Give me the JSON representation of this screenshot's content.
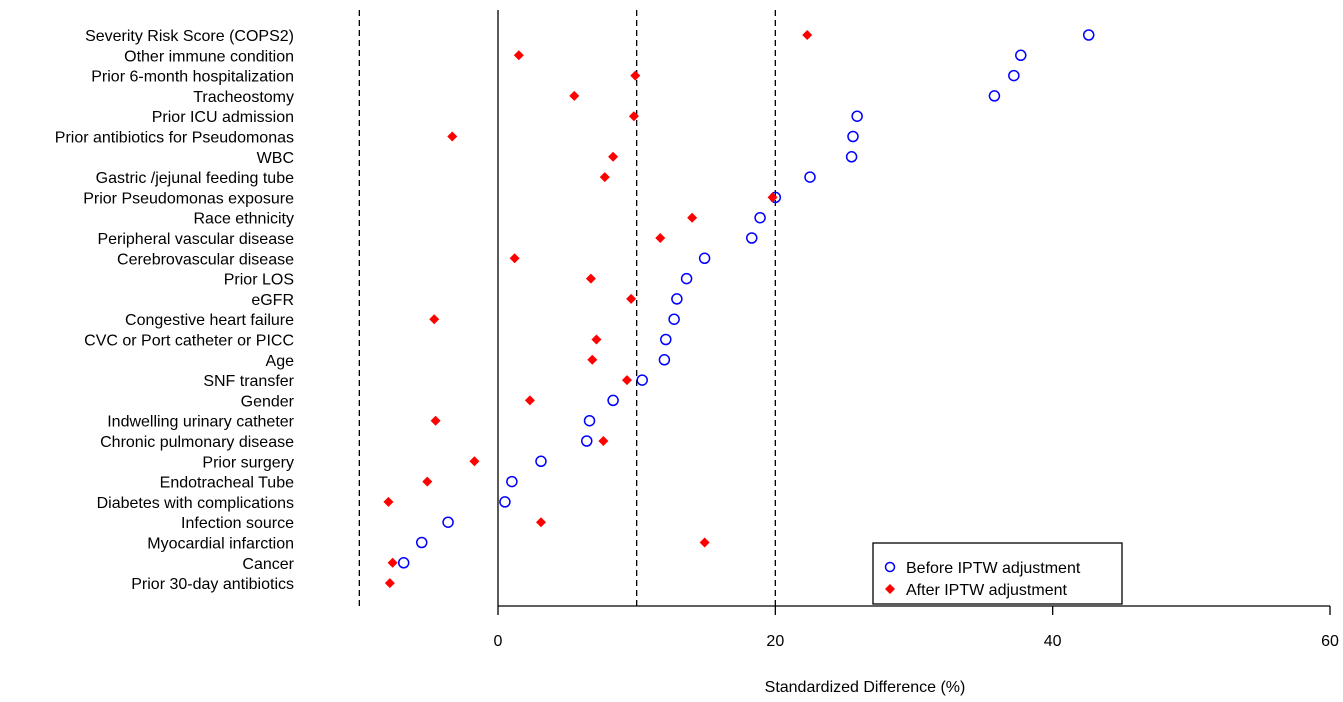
{
  "chart_data": {
    "type": "scatter",
    "title": "",
    "xlabel": "Standardized Difference (%)",
    "ylabel": "",
    "xlim": [
      -10,
      60
    ],
    "xticks": [
      0,
      20,
      40,
      60
    ],
    "reference_lines": [
      -10,
      0,
      10,
      20
    ],
    "grid": false,
    "legend_position": "bottom-right",
    "categories": [
      "Severity Risk Score (COPS2)",
      "Other immune condition",
      "Prior 6-month hospitalization",
      "Tracheostomy",
      "Prior ICU admission",
      "Prior antibiotics for Pseudomonas",
      "WBC",
      "Gastric /jejunal feeding tube",
      "Prior Pseudomonas exposure",
      "Race ethnicity",
      "Peripheral vascular disease",
      "Cerebrovascular disease",
      "Prior LOS",
      "eGFR",
      "Congestive heart failure",
      "CVC or Port catheter or PICC",
      "Age",
      "SNF transfer",
      "Gender",
      "Indwelling urinary catheter",
      "Chronic pulmonary disease",
      "Prior surgery",
      "Endotracheal Tube",
      "Diabetes with complications",
      "Infection source",
      "Myocardial infarction",
      "Cancer",
      "Prior 30-day antibiotics"
    ],
    "series": [
      {
        "name": "Before IPTW adjustment",
        "marker": "open-circle",
        "color": "#0000ff",
        "values": [
          42.6,
          37.7,
          37.2,
          35.8,
          25.9,
          25.6,
          25.5,
          22.5,
          20.0,
          18.9,
          18.3,
          14.9,
          13.6,
          12.9,
          12.7,
          12.1,
          12.0,
          10.4,
          8.3,
          6.6,
          6.4,
          3.1,
          1.0,
          0.5,
          -3.6,
          -5.5,
          -6.8,
          null
        ]
      },
      {
        "name": "After IPTW adjustment",
        "marker": "filled-diamond",
        "color": "#ff0000",
        "values": [
          22.3,
          1.5,
          9.9,
          5.5,
          9.8,
          -3.3,
          8.3,
          7.7,
          19.8,
          14.0,
          11.7,
          1.2,
          6.7,
          9.6,
          -4.6,
          7.1,
          6.8,
          9.3,
          2.3,
          -4.5,
          7.6,
          -1.7,
          -5.1,
          -7.9,
          3.1,
          14.9,
          -7.6,
          -7.8
        ]
      }
    ]
  }
}
